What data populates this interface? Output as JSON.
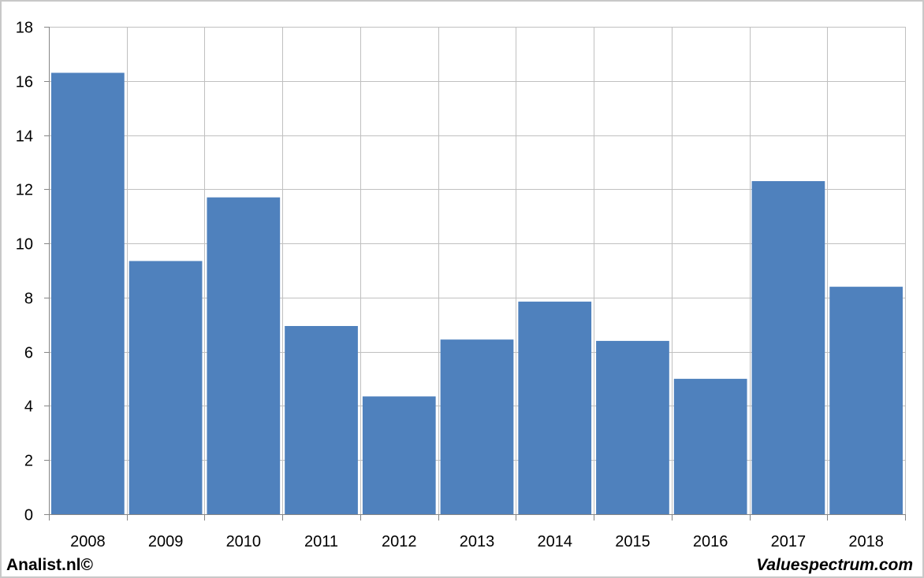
{
  "chart_data": {
    "type": "bar",
    "categories": [
      "2008",
      "2009",
      "2010",
      "2011",
      "2012",
      "2013",
      "2014",
      "2015",
      "2016",
      "2017",
      "2018"
    ],
    "values": [
      16.3,
      9.35,
      11.7,
      6.95,
      4.35,
      6.45,
      7.85,
      6.4,
      5.0,
      12.3,
      8.4
    ],
    "title": "",
    "xlabel": "",
    "ylabel": "",
    "ylim": [
      0,
      18
    ],
    "yticks": [
      0,
      2,
      4,
      6,
      8,
      10,
      12,
      14,
      16,
      18
    ],
    "grid": true,
    "legend": "none",
    "bar_color": "#4f81bd",
    "grid_color": "#c0c0c0"
  },
  "footer": {
    "left_text": "Analist.nl©",
    "right_text": "Valuespectrum.com"
  }
}
